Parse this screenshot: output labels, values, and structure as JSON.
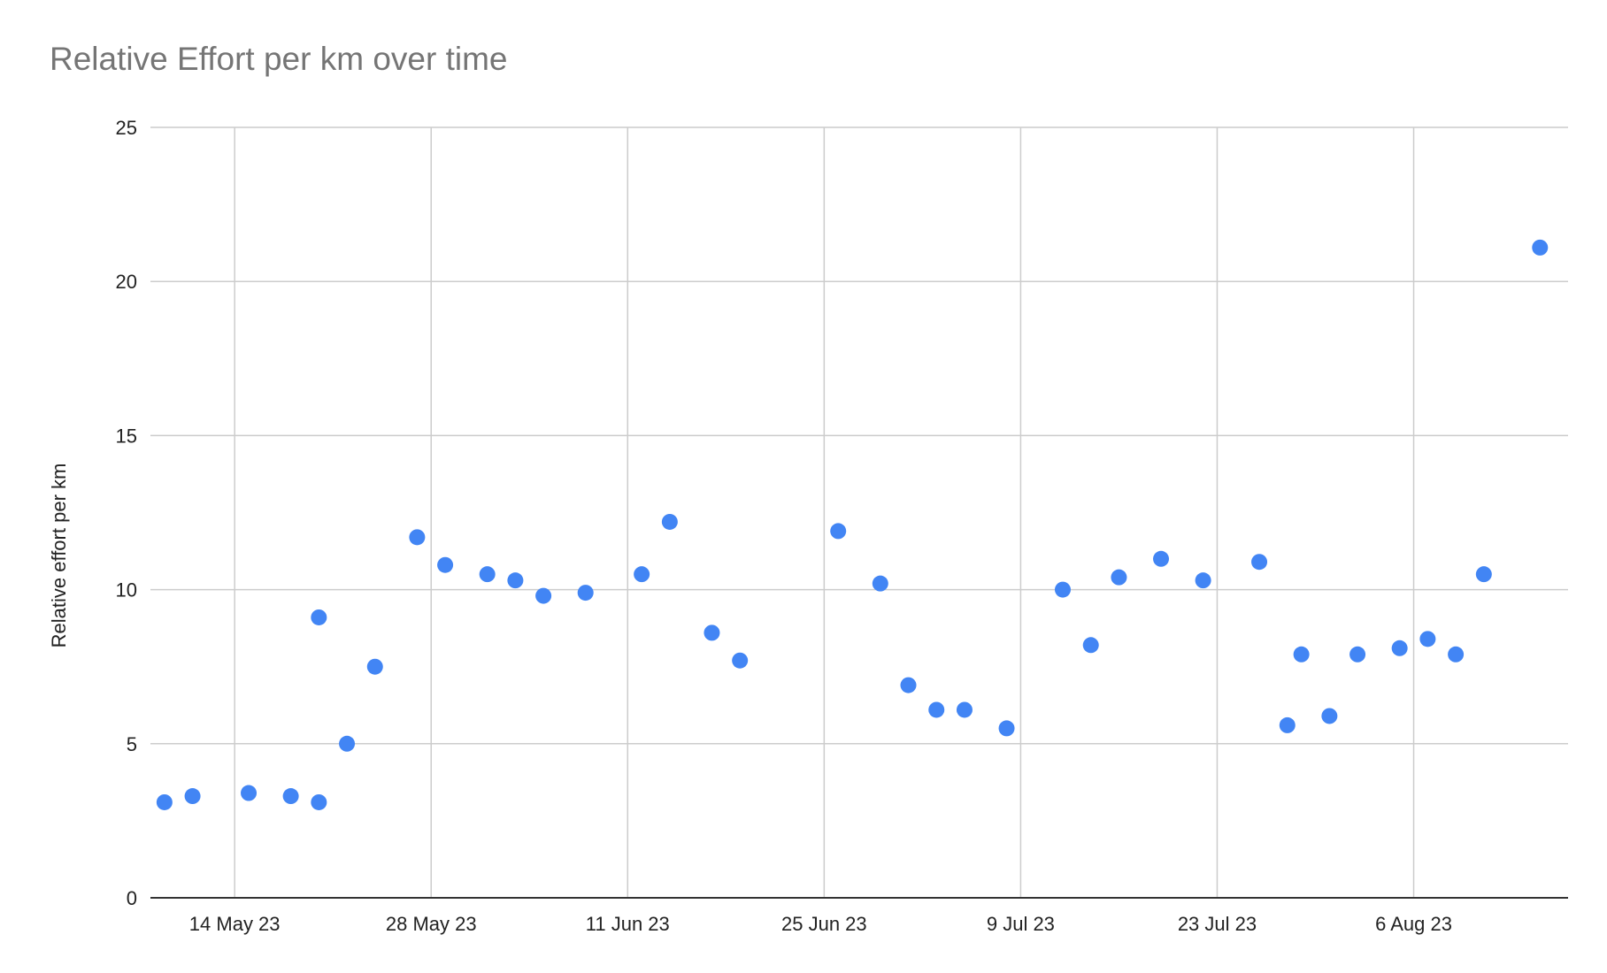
{
  "chart_data": {
    "type": "scatter",
    "title": "Relative Effort per km over time",
    "xlabel": "",
    "ylabel": "Relative effort per km",
    "ylim": [
      0,
      25
    ],
    "yticks": [
      0,
      5,
      10,
      15,
      20,
      25
    ],
    "xlim": [
      "2023-05-08",
      "2023-08-17"
    ],
    "xticks": [
      {
        "date": "2023-05-14",
        "label": "14 May 23"
      },
      {
        "date": "2023-05-28",
        "label": "28 May 23"
      },
      {
        "date": "2023-06-11",
        "label": "11 Jun 23"
      },
      {
        "date": "2023-06-25",
        "label": "25 Jun 23"
      },
      {
        "date": "2023-07-09",
        "label": "9 Jul 23"
      },
      {
        "date": "2023-07-23",
        "label": "23 Jul 23"
      },
      {
        "date": "2023-08-06",
        "label": "6 Aug 23"
      }
    ],
    "grid": true,
    "point_color": "#4285f4",
    "points": [
      {
        "x": "2023-05-09",
        "y": 3.1
      },
      {
        "x": "2023-05-11",
        "y": 3.3
      },
      {
        "x": "2023-05-15",
        "y": 3.4
      },
      {
        "x": "2023-05-18",
        "y": 3.3
      },
      {
        "x": "2023-05-20",
        "y": 3.1
      },
      {
        "x": "2023-05-20",
        "y": 9.1
      },
      {
        "x": "2023-05-22",
        "y": 5.0
      },
      {
        "x": "2023-05-24",
        "y": 7.5
      },
      {
        "x": "2023-05-27",
        "y": 11.7
      },
      {
        "x": "2023-05-29",
        "y": 10.8
      },
      {
        "x": "2023-06-01",
        "y": 10.5
      },
      {
        "x": "2023-06-03",
        "y": 10.3
      },
      {
        "x": "2023-06-05",
        "y": 9.8
      },
      {
        "x": "2023-06-08",
        "y": 9.9
      },
      {
        "x": "2023-06-12",
        "y": 10.5
      },
      {
        "x": "2023-06-14",
        "y": 12.2
      },
      {
        "x": "2023-06-17",
        "y": 8.6
      },
      {
        "x": "2023-06-19",
        "y": 7.7
      },
      {
        "x": "2023-06-26",
        "y": 11.9
      },
      {
        "x": "2023-06-29",
        "y": 10.2
      },
      {
        "x": "2023-07-01",
        "y": 6.9
      },
      {
        "x": "2023-07-03",
        "y": 6.1
      },
      {
        "x": "2023-07-05",
        "y": 6.1
      },
      {
        "x": "2023-07-08",
        "y": 5.5
      },
      {
        "x": "2023-07-12",
        "y": 10.0
      },
      {
        "x": "2023-07-14",
        "y": 8.2
      },
      {
        "x": "2023-07-16",
        "y": 10.4
      },
      {
        "x": "2023-07-19",
        "y": 11.0
      },
      {
        "x": "2023-07-22",
        "y": 10.3
      },
      {
        "x": "2023-07-26",
        "y": 10.9
      },
      {
        "x": "2023-07-28",
        "y": 5.6
      },
      {
        "x": "2023-07-29",
        "y": 7.9
      },
      {
        "x": "2023-07-31",
        "y": 5.9
      },
      {
        "x": "2023-08-02",
        "y": 7.9
      },
      {
        "x": "2023-08-05",
        "y": 8.1
      },
      {
        "x": "2023-08-07",
        "y": 8.4
      },
      {
        "x": "2023-08-09",
        "y": 7.9
      },
      {
        "x": "2023-08-11",
        "y": 10.5
      },
      {
        "x": "2023-08-15",
        "y": 21.1
      }
    ]
  }
}
